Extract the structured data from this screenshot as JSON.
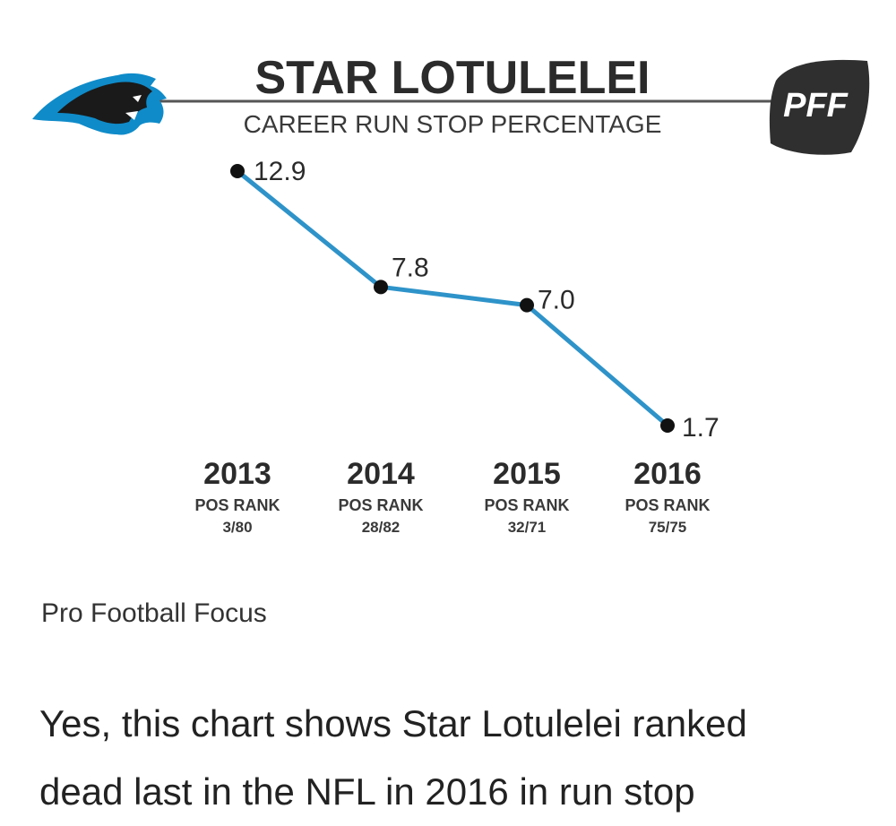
{
  "chart_data": {
    "type": "line",
    "title": "STAR LOTULELEI",
    "subtitle": "CAREER RUN STOP PERCENTAGE",
    "categories": [
      "2013",
      "2014",
      "2015",
      "2016"
    ],
    "values": [
      12.9,
      7.8,
      7.0,
      1.7
    ],
    "data_labels": [
      "12.9",
      "7.8",
      "7.0",
      "1.7"
    ],
    "sub_labels": [
      {
        "label": "POS RANK",
        "value": "3/80"
      },
      {
        "label": "POS RANK",
        "value": "28/82"
      },
      {
        "label": "POS RANK",
        "value": "32/71"
      },
      {
        "label": "POS RANK",
        "value": "75/75"
      }
    ],
    "xlabel": "",
    "ylabel": "",
    "grid": false,
    "line_color": "#2e93c9"
  },
  "logos": {
    "team": "panthers-logo",
    "brand": "PFF"
  },
  "colors": {
    "title": "#2b2b2b",
    "subtitle": "#3a3a3a",
    "line": "#2e93c9",
    "marker": "#111111",
    "logo_dark": "#2f2f2f",
    "panther_blue": "#0f8bc9"
  },
  "caption": "Pro Football Focus",
  "article": {
    "line1": "Yes, this chart shows Star Lotulelei ranked",
    "line2": "dead last in the NFL in 2016 in run stop"
  }
}
